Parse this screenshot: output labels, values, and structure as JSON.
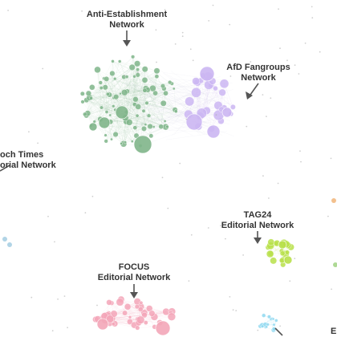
{
  "labels": {
    "anti_line1": "Anti-Establishment",
    "anti_line2": "Network",
    "afd_line1": "AfD Fangroups",
    "afd_line2": "Network",
    "epoch_line1": "och Times",
    "epoch_line2": "orial Network",
    "tag_line1": "TAG24",
    "tag_line2": "Editorial Network",
    "focus_line1": "FOCUS",
    "focus_line2": "Editorial Network",
    "edge_letter": "E"
  },
  "colors": {
    "anti": "#7fb58a",
    "afd": "#cbb6f2",
    "tag": "#b8e04a",
    "focus": "#f3a6b8",
    "cyan": "#8fd8f0",
    "arrow": "#555555"
  }
}
